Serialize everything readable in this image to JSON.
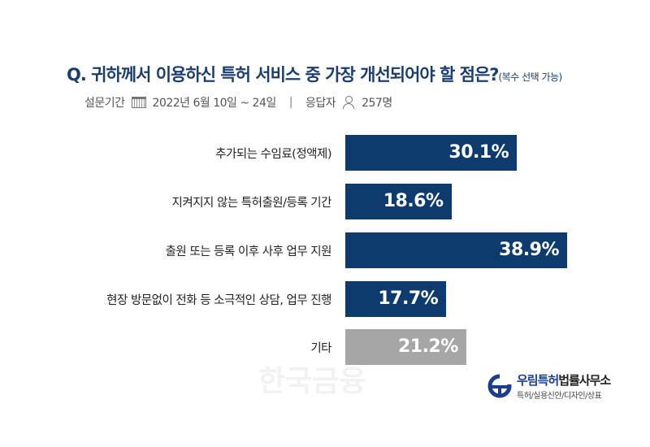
{
  "title": "Q. 귀하께서 이용하신 특허 서비스 중 가장 개선되어야 할 점은?",
  "title_note": "(복수 선택 가능)",
  "meta": {
    "period_label": "설문기간",
    "calendar_icon": "calendar-icon",
    "period": "2022년 6월 10일 ~ 24일",
    "separator": "|",
    "respondents_label": "응답자",
    "person_icon": "person-icon",
    "respondents": "257명"
  },
  "chart_data": {
    "type": "bar",
    "orientation": "horizontal",
    "categories": [
      "추가되는 수임료(정액제)",
      "지켜지지 않는 특허출원/등록 기간",
      "출원 또는 등록 이후 사후 업무 지원",
      "현장 방문없이 전화 등 소극적인 상담, 업무 진행",
      "기타"
    ],
    "values": [
      30.1,
      18.6,
      38.9,
      17.7,
      21.2
    ],
    "value_labels": [
      "30.1%",
      "18.6%",
      "38.9%",
      "17.7%",
      "21.2%"
    ],
    "colors": [
      "#0d3b6e",
      "#0d3b6e",
      "#0d3b6e",
      "#0d3b6e",
      "#a6a6a6"
    ],
    "xlim": [
      0,
      38.9
    ]
  },
  "watermark": "한국금융",
  "logo": {
    "name_accent": "우림특허",
    "name_rest": "법률사무소",
    "subtitle": "특허/실용신안/디자인/상표"
  }
}
